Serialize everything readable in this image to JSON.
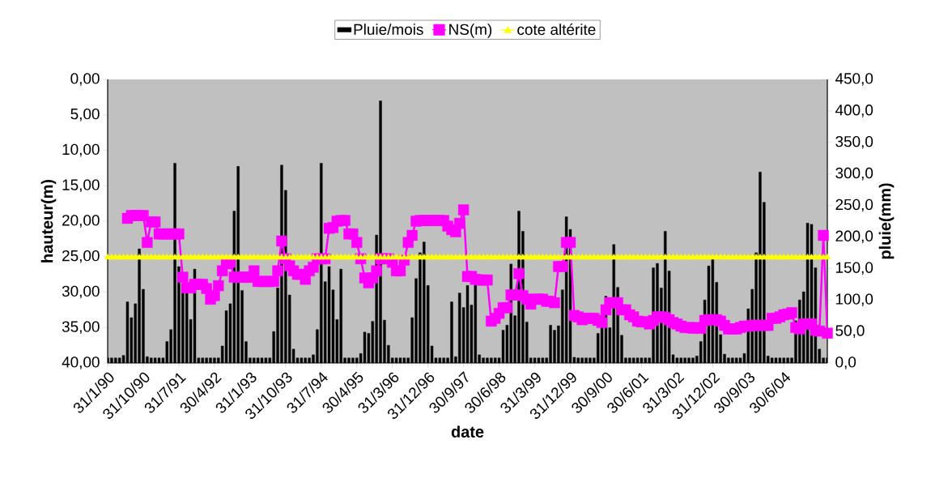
{
  "chart_data": {
    "type": "line",
    "xlabel": "date",
    "ylabel": "hauteur(m)",
    "y2label": "pluie(mm)",
    "legend": "top",
    "categories": [
      "31/1/90",
      null,
      null,
      null,
      null,
      null,
      null,
      null,
      null,
      "31/10/90",
      null,
      null,
      null,
      null,
      null,
      null,
      null,
      null,
      "31/7/91",
      null,
      null,
      null,
      null,
      null,
      null,
      null,
      null,
      "30/4/92",
      null,
      null,
      null,
      null,
      null,
      null,
      null,
      null,
      "31/1/93",
      null,
      null,
      null,
      null,
      null,
      null,
      null,
      null,
      "31/10/93",
      null,
      null,
      null,
      null,
      null,
      null,
      null,
      null,
      "31/7/94",
      null,
      null,
      null,
      null,
      null,
      null,
      null,
      null,
      "30/4/95",
      null,
      null,
      null,
      null,
      null,
      null,
      null,
      null,
      "31/3/96",
      null,
      null,
      null,
      null,
      null,
      null,
      null,
      null,
      "31/12/96",
      null,
      null,
      null,
      null,
      null,
      null,
      null,
      null,
      "30/9/97",
      null,
      null,
      null,
      null,
      null,
      null,
      null,
      null,
      "30/6/98",
      null,
      null,
      null,
      null,
      null,
      null,
      null,
      null,
      "31/3/99",
      null,
      null,
      null,
      null,
      null,
      null,
      null,
      null,
      "31/12/99",
      null,
      null,
      null,
      null,
      null,
      null,
      null,
      null,
      "30/9/00",
      null,
      null,
      null,
      null,
      null,
      null,
      null,
      null,
      "30/6/01",
      null,
      null,
      null,
      null,
      null,
      null,
      null,
      null,
      "31/3/02",
      null,
      null,
      null,
      null,
      null,
      null,
      null,
      null,
      "31/12/02",
      null,
      null,
      null,
      null,
      null,
      null,
      null,
      null,
      "30/9/03",
      null,
      null,
      null,
      null,
      null,
      null,
      null,
      null,
      "30/6/04",
      null,
      null,
      null,
      null,
      null,
      null,
      null,
      null,
      null,
      null,
      null
    ],
    "ylim": [
      40,
      0
    ],
    "yticks": [
      {
        "value": 0,
        "label": "0,00"
      },
      {
        "value": 5,
        "label": "5,00"
      },
      {
        "value": 10,
        "label": "10,00"
      },
      {
        "value": 15,
        "label": "15,00"
      },
      {
        "value": 20,
        "label": "20,00"
      },
      {
        "value": 25,
        "label": "25,00"
      },
      {
        "value": 30,
        "label": "30,00"
      },
      {
        "value": 35,
        "label": "35,00"
      },
      {
        "value": 40,
        "label": "40,00"
      }
    ],
    "y2lim": [
      0,
      450
    ],
    "y2ticks": [
      {
        "value": 0,
        "label": "0,0"
      },
      {
        "value": 50,
        "label": "50,0"
      },
      {
        "value": 100,
        "label": "100,0"
      },
      {
        "value": 150,
        "label": "150,0"
      },
      {
        "value": 200,
        "label": "200,0"
      },
      {
        "value": 250,
        "label": "250,0"
      },
      {
        "value": 300,
        "label": "300,0"
      },
      {
        "value": 350,
        "label": "350,0"
      },
      {
        "value": 400,
        "label": "400,0"
      },
      {
        "value": 450,
        "label": "450,0"
      }
    ],
    "series": [
      {
        "name": "Pluie/mois",
        "type": "bar",
        "axis": "y2",
        "color": "#000000",
        "values": [
          8,
          8,
          8,
          8,
          12,
          97,
          72,
          94,
          181,
          117,
          10,
          8,
          8,
          8,
          8,
          34,
          53,
          317,
          153,
          125,
          112,
          69,
          149,
          8,
          8,
          8,
          8,
          8,
          8,
          27,
          83,
          94,
          241,
          312,
          115,
          34,
          8,
          8,
          8,
          8,
          8,
          8,
          50,
          119,
          314,
          274,
          108,
          22,
          8,
          8,
          8,
          8,
          13,
          53,
          317,
          129,
          153,
          116,
          69,
          149,
          8,
          8,
          8,
          8,
          15,
          49,
          47,
          66,
          203,
          416,
          68,
          28,
          8,
          8,
          8,
          8,
          8,
          72,
          134,
          175,
          192,
          123,
          27,
          8,
          8,
          8,
          8,
          97,
          10,
          111,
          88,
          123,
          92,
          127,
          13,
          8,
          8,
          8,
          8,
          8,
          52,
          60,
          157,
          75,
          241,
          209,
          65,
          8,
          8,
          8,
          8,
          8,
          60,
          52,
          59,
          116,
          232,
          212,
          9,
          8,
          8,
          8,
          8,
          8,
          47,
          56,
          106,
          56,
          188,
          120,
          44,
          8,
          8,
          8,
          8,
          8,
          8,
          8,
          151,
          158,
          119,
          209,
          146,
          13,
          8,
          8,
          8,
          8,
          8,
          11,
          34,
          100,
          154,
          166,
          128,
          45,
          14,
          8,
          8,
          8,
          8,
          15,
          86,
          117,
          175,
          303,
          255,
          11,
          8,
          8,
          8,
          8,
          8,
          8,
          67,
          100,
          113,
          222,
          220,
          151,
          22,
          8,
          8
        ]
      },
      {
        "name": "NS(m)",
        "color": "#ff00ff",
        "marker": "square",
        "values": [
          null,
          null,
          null,
          null,
          null,
          19.6,
          19.2,
          19.2,
          19.2,
          19.2,
          23.0,
          20.1,
          20.1,
          21.8,
          21.8,
          21.8,
          21.8,
          21.8,
          21.8,
          27.9,
          29.4,
          29.4,
          28.9,
          28.9,
          28.9,
          29.5,
          31.0,
          30.5,
          29.1,
          27.0,
          26.0,
          25.8,
          27.9,
          27.9,
          27.9,
          27.9,
          27.9,
          27.0,
          28.5,
          28.5,
          28.5,
          28.5,
          28.5,
          27.0,
          22.8,
          25.3,
          26.3,
          27.0,
          27.5,
          27.5,
          28.2,
          27.0,
          26.5,
          25.3,
          25.3,
          25.3,
          21.0,
          20.9,
          20.0,
          19.9,
          19.9,
          21.8,
          21.8,
          23.0,
          25.3,
          28.0,
          28.7,
          28.0,
          27.0,
          25.3,
          25.3,
          25.3,
          25.8,
          27.0,
          27.0,
          25.5,
          23.0,
          22.0,
          20.0,
          19.9,
          19.9,
          19.9,
          19.9,
          19.9,
          19.9,
          19.9,
          20.7,
          21.2,
          21.5,
          20.3,
          18.4,
          27.8,
          27.8,
          28.2,
          28.3,
          28.3,
          28.3,
          34.1,
          33.7,
          33.0,
          32.2,
          32.2,
          30.4,
          30.4,
          27.4,
          30.5,
          31.0,
          31.7,
          31.0,
          31.0,
          31.0,
          31.3,
          31.3,
          31.5,
          26.4,
          26.4,
          23.0,
          23.0,
          33.3,
          33.5,
          33.9,
          33.7,
          33.7,
          33.7,
          34.0,
          34.3,
          32.5,
          31.5,
          31.5,
          31.5,
          32.5,
          32.5,
          33.2,
          33.5,
          34.1,
          34.2,
          34.2,
          34.5,
          34.0,
          33.5,
          33.5,
          33.6,
          33.9,
          34.3,
          34.5,
          34.8,
          35.0,
          35.0,
          35.1,
          35.0,
          35.1,
          34.0,
          33.9,
          33.9,
          33.9,
          34.1,
          34.7,
          35.2,
          35.2,
          35.2,
          35.0,
          34.8,
          34.8,
          34.7,
          34.7,
          34.7,
          34.7,
          34.7,
          33.7,
          33.7,
          33.5,
          33.2,
          33.1,
          32.9,
          35.0,
          35.2,
          34.5,
          34.5,
          34.5,
          35.4,
          35.5,
          22.0,
          35.8
        ]
      },
      {
        "name": "cote altérite",
        "color": "#ffff00",
        "marker": "triangle",
        "values": [
          25,
          25,
          25,
          25,
          25,
          25,
          25,
          25,
          25,
          25,
          25,
          25,
          25,
          25,
          25,
          25,
          25,
          25,
          25,
          25,
          25,
          25,
          25,
          25,
          25,
          25,
          25,
          25,
          25,
          25,
          25,
          25,
          25,
          25,
          25,
          25,
          25,
          25,
          25,
          25,
          25,
          25,
          25,
          25,
          25,
          25,
          25,
          25,
          25,
          25,
          25,
          25,
          25,
          25,
          25,
          25,
          25,
          25,
          25,
          25,
          25,
          25,
          25,
          25,
          25,
          25,
          25,
          25,
          25,
          25,
          25,
          25,
          25,
          25,
          25,
          25,
          25,
          25,
          25,
          25,
          25,
          25,
          25,
          25,
          25,
          25,
          25,
          25,
          25,
          25,
          25,
          25,
          25,
          25,
          25,
          25,
          25,
          25,
          25,
          25,
          25,
          25,
          25,
          25,
          25,
          25,
          25,
          25,
          25,
          25,
          25,
          25,
          25,
          25,
          25,
          25,
          25,
          25,
          25,
          25,
          25,
          25,
          25,
          25,
          25,
          25,
          25,
          25,
          25,
          25,
          25,
          25,
          25,
          25,
          25,
          25,
          25,
          25,
          25,
          25,
          25,
          25,
          25,
          25,
          25,
          25,
          25,
          25,
          25,
          25,
          25,
          25,
          25,
          25,
          25,
          25,
          25,
          25,
          25,
          25,
          25,
          25,
          25,
          25,
          25,
          25,
          25,
          25,
          25,
          25,
          25,
          25,
          25,
          25,
          25,
          25,
          25,
          25,
          25,
          25,
          25,
          25,
          25
        ]
      }
    ]
  }
}
